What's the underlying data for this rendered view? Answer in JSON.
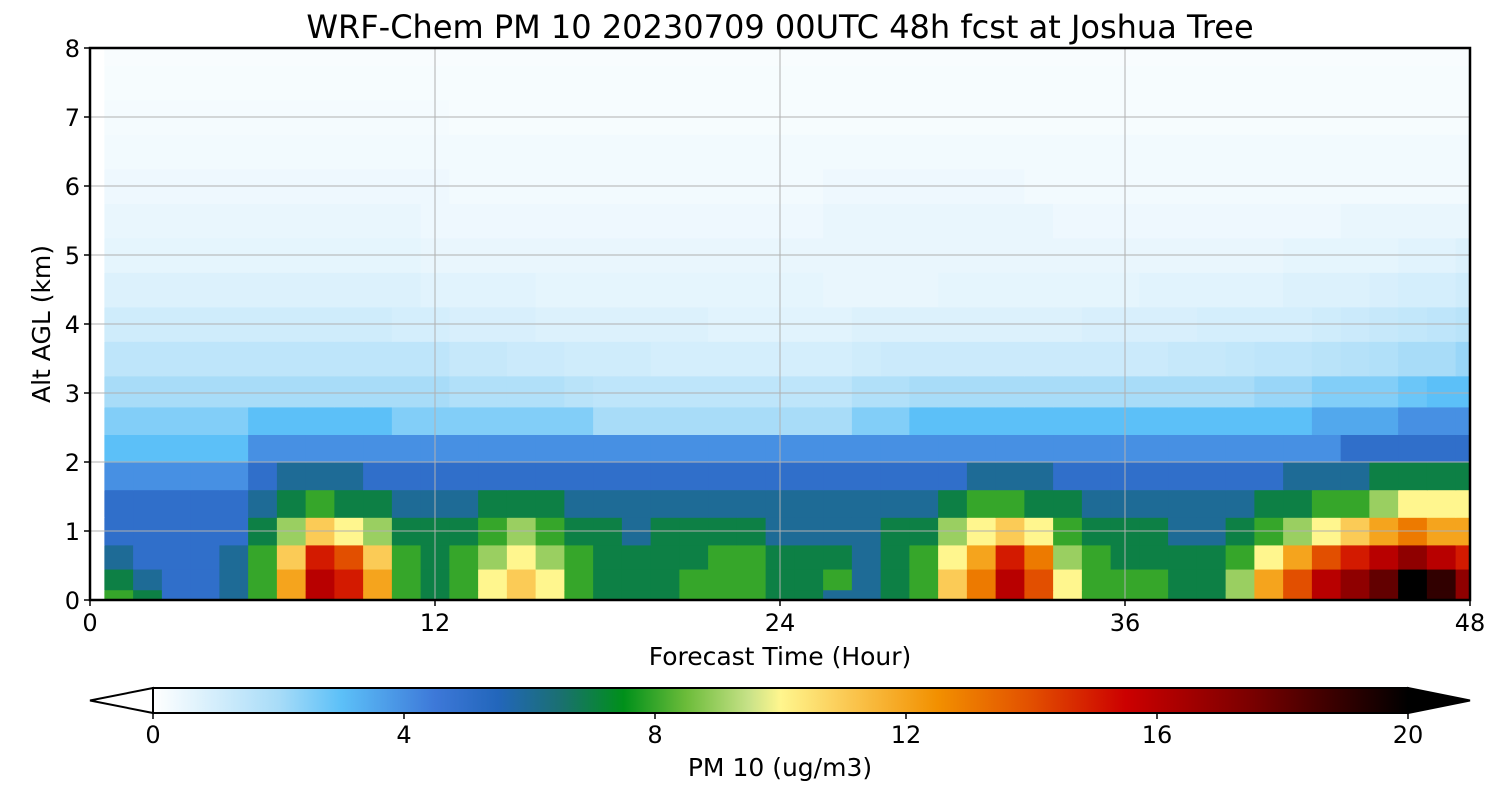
{
  "chart_data": [
    {
      "type": "heatmap",
      "title": "WRF-Chem PM 10  20230709 00UTC 48h fcst at Joshua Tree",
      "xlabel": "Forecast Time (Hour)",
      "ylabel": "Alt AGL (km)",
      "xlim": [
        0,
        48
      ],
      "ylim": [
        0,
        8
      ],
      "xticks": [
        0,
        12,
        24,
        36,
        48
      ],
      "yticks": [
        0,
        1,
        2,
        3,
        4,
        5,
        6,
        7,
        8
      ],
      "grid": true,
      "x_hours": [
        0,
        1,
        2,
        3,
        4,
        5,
        6,
        7,
        8,
        9,
        10,
        11,
        12,
        13,
        14,
        15,
        16,
        17,
        18,
        19,
        20,
        21,
        22,
        23,
        24,
        25,
        26,
        27,
        28,
        29,
        30,
        31,
        32,
        33,
        34,
        35,
        36,
        37,
        38,
        39,
        40,
        41,
        42,
        43,
        44,
        45,
        46,
        47,
        48
      ],
      "y_km": [
        0.0,
        0.3,
        0.6,
        1.0,
        1.4,
        1.8,
        2.2,
        2.6,
        3.0,
        3.5,
        4.0,
        4.5,
        5.0,
        5.5,
        6.0,
        6.5,
        7.0,
        7.5,
        8.0
      ],
      "pm10_ugm3_approx": [
        [
          0,
          8,
          7,
          5,
          5,
          6,
          8,
          12,
          16,
          15,
          12,
          8,
          7,
          8,
          10,
          11,
          10,
          8,
          7,
          7,
          7,
          8,
          8,
          8,
          7,
          7,
          6,
          6,
          7,
          8,
          11,
          13,
          16,
          14,
          10,
          8,
          8,
          8,
          7,
          7,
          9,
          12,
          14,
          16,
          17,
          18,
          20,
          19,
          17
        ],
        [
          0,
          7,
          6,
          5,
          5,
          6,
          8,
          12,
          16,
          15,
          12,
          8,
          7,
          8,
          10,
          11,
          10,
          8,
          7,
          7,
          7,
          8,
          8,
          8,
          7,
          7,
          8,
          6,
          7,
          8,
          11,
          13,
          16,
          14,
          10,
          8,
          8,
          8,
          7,
          7,
          9,
          12,
          14,
          16,
          17,
          18,
          20,
          19,
          17
        ],
        [
          0,
          6,
          5,
          5,
          5,
          6,
          8,
          11,
          15,
          14,
          11,
          8,
          7,
          8,
          9,
          10,
          9,
          8,
          7,
          7,
          7,
          7,
          8,
          8,
          7,
          7,
          7,
          6,
          7,
          8,
          10,
          12,
          15,
          13,
          9,
          8,
          7,
          7,
          7,
          7,
          8,
          10,
          12,
          14,
          15,
          16,
          17,
          16,
          15
        ],
        [
          0,
          5,
          5,
          5,
          5,
          5,
          7,
          9,
          11,
          10,
          9,
          7,
          7,
          7,
          8,
          9,
          8,
          7,
          7,
          6,
          7,
          7,
          7,
          7,
          6,
          6,
          6,
          6,
          7,
          7,
          9,
          10,
          11,
          10,
          8,
          7,
          7,
          7,
          6,
          6,
          7,
          8,
          9,
          10,
          11,
          12,
          13,
          12,
          12
        ],
        [
          0,
          5,
          5,
          5,
          5,
          5,
          6,
          7,
          8,
          7,
          7,
          6,
          6,
          6,
          7,
          7,
          7,
          6,
          6,
          6,
          6,
          6,
          6,
          6,
          6,
          6,
          6,
          6,
          6,
          6,
          7,
          8,
          8,
          7,
          7,
          6,
          6,
          6,
          6,
          6,
          6,
          7,
          7,
          8,
          8,
          9,
          10,
          10,
          10
        ],
        [
          0,
          4,
          4,
          4,
          4,
          4,
          5,
          6,
          6,
          6,
          5,
          5,
          5,
          5,
          5,
          5,
          5,
          5,
          5,
          5,
          5,
          5,
          5,
          5,
          5,
          5,
          5,
          5,
          5,
          5,
          5,
          6,
          6,
          6,
          5,
          5,
          5,
          5,
          5,
          5,
          5,
          5,
          6,
          6,
          6,
          7,
          7,
          7,
          7
        ],
        [
          0,
          3,
          3,
          3,
          3,
          3,
          4,
          4,
          4,
          4,
          4,
          4,
          4,
          4,
          4,
          4,
          4,
          4,
          4,
          4,
          4,
          4,
          4,
          4,
          4,
          4,
          4,
          4,
          4,
          4,
          4,
          4,
          4,
          4,
          4,
          4,
          4,
          4,
          4,
          4,
          4,
          4,
          4,
          4,
          5,
          5,
          5,
          5,
          5
        ],
        [
          0,
          2.5,
          2.5,
          2.5,
          2.5,
          2.5,
          3,
          3,
          3,
          3,
          3,
          2.5,
          2.5,
          2.5,
          2.5,
          2.5,
          2.5,
          2.5,
          2,
          2,
          2,
          2,
          2,
          2,
          2,
          2,
          2,
          2.5,
          2.5,
          3,
          3,
          3,
          3,
          3,
          3,
          3,
          3,
          3,
          3,
          3,
          3,
          3,
          3,
          3.5,
          3.5,
          3.5,
          4,
          4,
          4
        ],
        [
          0,
          2,
          2,
          2,
          2,
          2,
          2,
          2,
          2,
          2,
          2,
          2,
          2,
          1.8,
          1.8,
          1.8,
          1.8,
          1.6,
          1.5,
          1.5,
          1.5,
          1.5,
          1.5,
          1.5,
          1.5,
          1.5,
          1.5,
          1.8,
          1.8,
          2,
          2,
          2,
          2,
          2,
          2,
          2,
          2,
          2,
          2,
          2,
          2,
          2.2,
          2.2,
          2.5,
          2.5,
          2.5,
          2.8,
          3,
          3
        ],
        [
          0,
          1.5,
          1.5,
          1.5,
          1.5,
          1.5,
          1.5,
          1.5,
          1.5,
          1.5,
          1.5,
          1.5,
          1.5,
          1.3,
          1.3,
          1.2,
          1.2,
          1.1,
          1.1,
          1.1,
          1,
          1,
          1,
          1,
          1,
          1,
          1,
          1.1,
          1.2,
          1.2,
          1.2,
          1.2,
          1.2,
          1.2,
          1.2,
          1.2,
          1.2,
          1.2,
          1.3,
          1.3,
          1.4,
          1.5,
          1.5,
          1.6,
          1.7,
          1.8,
          2,
          2,
          2.2
        ],
        [
          0,
          1.1,
          1.1,
          1.1,
          1.1,
          1.1,
          1.1,
          1.1,
          1.1,
          1.1,
          1.1,
          1,
          1,
          0.9,
          0.9,
          0.9,
          0.8,
          0.8,
          0.8,
          0.8,
          0.8,
          0.8,
          0.7,
          0.7,
          0.7,
          0.7,
          0.7,
          0.8,
          0.8,
          0.8,
          0.8,
          0.8,
          0.8,
          0.8,
          0.8,
          0.9,
          0.9,
          0.9,
          0.9,
          1,
          1,
          1,
          1,
          1.1,
          1.2,
          1.3,
          1.4,
          1.5,
          1.6
        ],
        [
          0,
          0.8,
          0.8,
          0.8,
          0.8,
          0.8,
          0.8,
          0.8,
          0.8,
          0.8,
          0.8,
          0.8,
          0.7,
          0.7,
          0.7,
          0.7,
          0.6,
          0.6,
          0.6,
          0.6,
          0.6,
          0.6,
          0.6,
          0.6,
          0.6,
          0.6,
          0.5,
          0.5,
          0.5,
          0.5,
          0.6,
          0.6,
          0.6,
          0.6,
          0.6,
          0.6,
          0.6,
          0.7,
          0.7,
          0.7,
          0.7,
          0.7,
          0.8,
          0.8,
          0.8,
          0.9,
          1,
          1,
          1.1
        ],
        [
          0,
          0.6,
          0.6,
          0.6,
          0.6,
          0.6,
          0.6,
          0.6,
          0.6,
          0.6,
          0.6,
          0.6,
          0.5,
          0.5,
          0.5,
          0.5,
          0.5,
          0.5,
          0.5,
          0.5,
          0.5,
          0.5,
          0.5,
          0.5,
          0.5,
          0.5,
          0.5,
          0.5,
          0.5,
          0.5,
          0.5,
          0.5,
          0.5,
          0.5,
          0.5,
          0.5,
          0.5,
          0.5,
          0.5,
          0.5,
          0.5,
          0.5,
          0.6,
          0.6,
          0.6,
          0.6,
          0.7,
          0.7,
          0.8
        ],
        [
          0,
          0.5,
          0.5,
          0.5,
          0.5,
          0.5,
          0.5,
          0.5,
          0.5,
          0.5,
          0.5,
          0.5,
          0.4,
          0.4,
          0.4,
          0.4,
          0.4,
          0.4,
          0.4,
          0.4,
          0.4,
          0.4,
          0.4,
          0.4,
          0.4,
          0.4,
          0.5,
          0.5,
          0.5,
          0.5,
          0.5,
          0.5,
          0.5,
          0.5,
          0.4,
          0.4,
          0.4,
          0.4,
          0.4,
          0.4,
          0.4,
          0.4,
          0.4,
          0.4,
          0.5,
          0.5,
          0.5,
          0.5,
          0.5
        ],
        [
          0,
          0.4,
          0.4,
          0.4,
          0.4,
          0.4,
          0.4,
          0.4,
          0.4,
          0.4,
          0.4,
          0.4,
          0.4,
          0.3,
          0.3,
          0.3,
          0.3,
          0.3,
          0.3,
          0.3,
          0.3,
          0.3,
          0.3,
          0.3,
          0.3,
          0.3,
          0.4,
          0.4,
          0.4,
          0.4,
          0.4,
          0.4,
          0.4,
          0.3,
          0.3,
          0.3,
          0.3,
          0.3,
          0.3,
          0.3,
          0.3,
          0.3,
          0.3,
          0.3,
          0.3,
          0.3,
          0.3,
          0.3,
          0.3
        ],
        [
          0,
          0.3,
          0.3,
          0.3,
          0.3,
          0.3,
          0.3,
          0.3,
          0.3,
          0.3,
          0.3,
          0.3,
          0.3,
          0.3,
          0.3,
          0.3,
          0.3,
          0.3,
          0.3,
          0.3,
          0.3,
          0.3,
          0.3,
          0.3,
          0.3,
          0.3,
          0.3,
          0.3,
          0.3,
          0.3,
          0.3,
          0.3,
          0.3,
          0.3,
          0.3,
          0.3,
          0.3,
          0.3,
          0.3,
          0.3,
          0.3,
          0.3,
          0.3,
          0.3,
          0.3,
          0.3,
          0.3,
          0.3,
          0.3
        ],
        [
          0,
          0.25,
          0.25,
          0.25,
          0.25,
          0.25,
          0.25,
          0.25,
          0.25,
          0.25,
          0.25,
          0.25,
          0.25,
          0.2,
          0.2,
          0.2,
          0.2,
          0.2,
          0.2,
          0.2,
          0.2,
          0.2,
          0.2,
          0.2,
          0.2,
          0.2,
          0.2,
          0.2,
          0.2,
          0.2,
          0.2,
          0.2,
          0.2,
          0.2,
          0.2,
          0.2,
          0.2,
          0.2,
          0.2,
          0.2,
          0.2,
          0.2,
          0.2,
          0.2,
          0.2,
          0.2,
          0.2,
          0.2,
          0.2
        ],
        [
          0,
          0.2,
          0.2,
          0.2,
          0.2,
          0.2,
          0.2,
          0.2,
          0.2,
          0.2,
          0.2,
          0.2,
          0.2,
          0.2,
          0.2,
          0.2,
          0.2,
          0.2,
          0.2,
          0.2,
          0.2,
          0.2,
          0.2,
          0.2,
          0.2,
          0.2,
          0.2,
          0.2,
          0.2,
          0.2,
          0.2,
          0.2,
          0.2,
          0.2,
          0.2,
          0.2,
          0.2,
          0.2,
          0.2,
          0.2,
          0.2,
          0.2,
          0.2,
          0.2,
          0.2,
          0.2,
          0.2,
          0.2,
          0.2
        ],
        [
          0,
          0.15,
          0.15,
          0.15,
          0.15,
          0.15,
          0.15,
          0.15,
          0.15,
          0.15,
          0.15,
          0.15,
          0.15,
          0.15,
          0.15,
          0.15,
          0.15,
          0.15,
          0.15,
          0.15,
          0.15,
          0.15,
          0.15,
          0.15,
          0.15,
          0.15,
          0.15,
          0.15,
          0.15,
          0.15,
          0.15,
          0.15,
          0.15,
          0.15,
          0.15,
          0.15,
          0.15,
          0.15,
          0.15,
          0.15,
          0.15,
          0.15,
          0.15,
          0.15,
          0.15,
          0.15,
          0.15,
          0.15,
          0.15
        ]
      ],
      "colorbar": {
        "label": "PM 10  (ug/m3)",
        "ticks": [
          0,
          4,
          8,
          12,
          16,
          20
        ],
        "range": [
          0,
          20
        ],
        "extend": "both",
        "orientation": "horizontal",
        "color_stops": [
          {
            "value": 0,
            "color": "#ffffff"
          },
          {
            "value": 2,
            "color": "#a8dcf8"
          },
          {
            "value": 3,
            "color": "#5cc0f8"
          },
          {
            "value": 4.5,
            "color": "#3d78d8"
          },
          {
            "value": 5.5,
            "color": "#2266bb"
          },
          {
            "value": 6.5,
            "color": "#1a7070"
          },
          {
            "value": 7.5,
            "color": "#00901a"
          },
          {
            "value": 8.5,
            "color": "#6cbc3a"
          },
          {
            "value": 9.5,
            "color": "#c8e288"
          },
          {
            "value": 10,
            "color": "#fff68e"
          },
          {
            "value": 11,
            "color": "#fbcb56"
          },
          {
            "value": 12.5,
            "color": "#f29000"
          },
          {
            "value": 14,
            "color": "#e24f00"
          },
          {
            "value": 15.5,
            "color": "#cc0000"
          },
          {
            "value": 17.5,
            "color": "#7a0000"
          },
          {
            "value": 20,
            "color": "#000000"
          }
        ]
      }
    }
  ]
}
